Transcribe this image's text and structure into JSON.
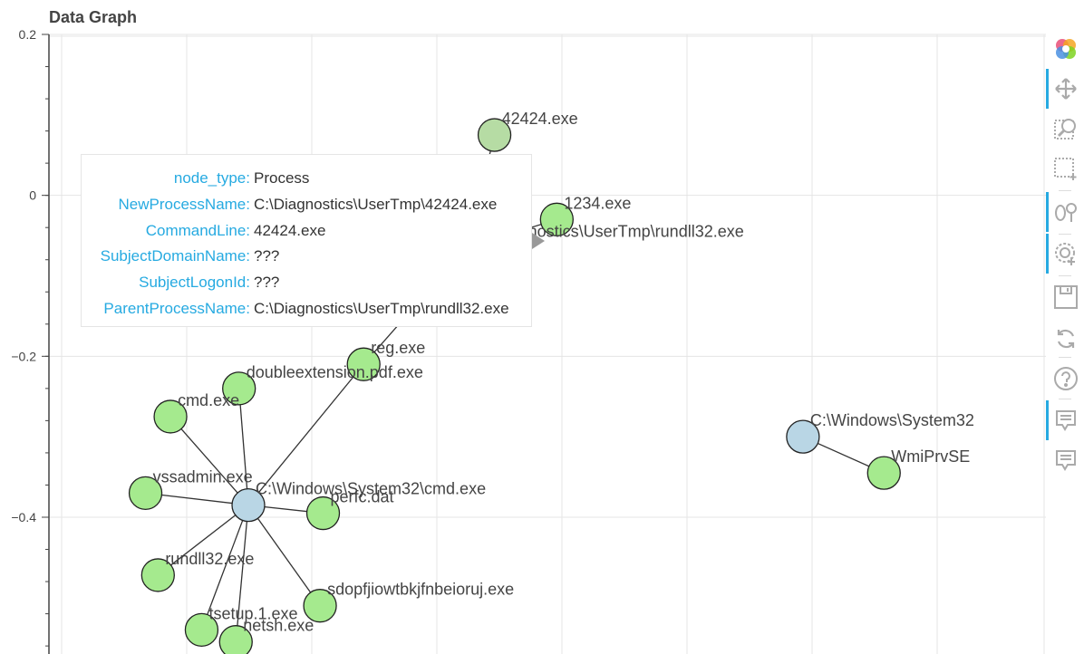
{
  "chart_data": {
    "type": "scatter",
    "title": "Data Graph",
    "xlim": [
      -0.82,
      0.78
    ],
    "ylim": [
      -0.57,
      0.2
    ],
    "xticks": [],
    "yticks": [
      {
        "value": 0.2,
        "label": "0.2"
      },
      {
        "value": 0,
        "label": "0"
      },
      {
        "value": -0.2,
        "label": "−0.2"
      },
      {
        "value": -0.4,
        "label": "−0.4"
      }
    ],
    "grid": true,
    "nodes": [
      {
        "id": "cmd_parent",
        "label": "C:\\Windows\\System32\\cmd.exe",
        "x": -0.5,
        "y": -0.385,
        "node_type": "parent"
      },
      {
        "id": "rundll_parent",
        "label": "C:\\Diagnostics\\UserTmp\\rundll32.exe",
        "x": -0.15,
        "y": -0.065,
        "node_type": "parent"
      },
      {
        "id": "wmi_parent",
        "label": "C:\\Windows\\System32",
        "x": 0.39,
        "y": -0.3,
        "node_type": "parent"
      },
      {
        "id": "n42424",
        "label": "42424.exe",
        "x": -0.105,
        "y": 0.075,
        "node_type": "Process"
      },
      {
        "id": "n1234",
        "label": "1234.exe",
        "x": -0.005,
        "y": -0.03,
        "node_type": "Process"
      },
      {
        "id": "nreg",
        "label": "reg.exe",
        "x": -0.315,
        "y": -0.21,
        "node_type": "Process"
      },
      {
        "id": "ndouble",
        "label": "doubleextension.pdf.exe",
        "x": -0.515,
        "y": -0.24,
        "node_type": "Process"
      },
      {
        "id": "ncmd",
        "label": "cmd.exe",
        "x": -0.625,
        "y": -0.275,
        "node_type": "Process"
      },
      {
        "id": "nvss",
        "label": "vssadmin.exe",
        "x": -0.665,
        "y": -0.37,
        "node_type": "Process"
      },
      {
        "id": "nperfc",
        "label": "perfc.dat",
        "x": -0.38,
        "y": -0.395,
        "node_type": "Process"
      },
      {
        "id": "nrundll",
        "label": "rundll32.exe",
        "x": -0.645,
        "y": -0.472,
        "node_type": "Process"
      },
      {
        "id": "nsdop",
        "label": "sdopfjiowtbkjfnbeioruj.exe",
        "x": -0.385,
        "y": -0.51,
        "node_type": "Process"
      },
      {
        "id": "ntsetup",
        "label": "tsetup.1.exe",
        "x": -0.575,
        "y": -0.54,
        "node_type": "Process"
      },
      {
        "id": "nnetsh",
        "label": "netsh.exe",
        "x": -0.52,
        "y": -0.555,
        "node_type": "Process"
      },
      {
        "id": "nwmi",
        "label": "WmiPrvSE",
        "x": 0.52,
        "y": -0.345,
        "node_type": "Process"
      }
    ],
    "edges": [
      [
        "cmd_parent",
        "nreg"
      ],
      [
        "nreg",
        "rundll_parent"
      ],
      [
        "rundll_parent",
        "n42424"
      ],
      [
        "rundll_parent",
        "n1234"
      ],
      [
        "cmd_parent",
        "ndouble"
      ],
      [
        "cmd_parent",
        "ncmd"
      ],
      [
        "cmd_parent",
        "nvss"
      ],
      [
        "cmd_parent",
        "nperfc"
      ],
      [
        "cmd_parent",
        "nrundll"
      ],
      [
        "cmd_parent",
        "nsdop"
      ],
      [
        "cmd_parent",
        "ntsetup"
      ],
      [
        "cmd_parent",
        "nnetsh"
      ],
      [
        "wmi_parent",
        "nwmi"
      ]
    ],
    "hovered_node": "n42424"
  },
  "colors": {
    "parent_node": "#b9d6e5",
    "child_node": "#a5ea8e",
    "hovered_node": "#b6dca4",
    "edge": "#333333",
    "grid": "#e5e5e5",
    "tooltip_key": "#26aae1",
    "toolbar_active": "#26aae1"
  },
  "tooltip": {
    "rows": [
      {
        "key": "node_type:",
        "value": "Process"
      },
      {
        "key": "NewProcessName:",
        "value": "C:\\Diagnostics\\UserTmp\\42424.exe"
      },
      {
        "key": "CommandLine:",
        "value": "42424.exe"
      },
      {
        "key": "SubjectDomainName:",
        "value": "???"
      },
      {
        "key": "SubjectLogonId:",
        "value": "???"
      },
      {
        "key": "ParentProcessName:",
        "value": "C:\\Diagnostics\\UserTmp\\rundll32.exe"
      }
    ]
  },
  "toolbar": [
    {
      "name": "bokeh-logo-icon",
      "active": false
    },
    {
      "name": "pan-icon",
      "active": true
    },
    {
      "name": "zoom-icon",
      "active": false
    },
    {
      "name": "box-select-icon",
      "active": false
    },
    {
      "name": "lasso-icon",
      "active": true
    },
    {
      "name": "tap-icon",
      "active": true
    },
    {
      "name": "save-icon",
      "active": false
    },
    {
      "name": "reset-icon",
      "active": false
    },
    {
      "name": "help-icon",
      "active": false
    },
    {
      "name": "hover-icon",
      "active": true
    },
    {
      "name": "hover-icon-2",
      "active": false
    }
  ]
}
